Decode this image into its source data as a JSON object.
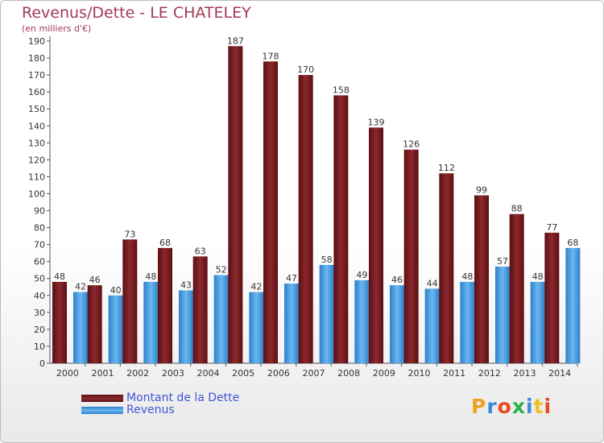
{
  "title": "Revenus/Dette - LE CHATELEY",
  "subtitle": "(en milliers d'€)",
  "chart_data": {
    "type": "bar",
    "categories": [
      "2000",
      "2001",
      "2002",
      "2003",
      "2004",
      "2005",
      "2006",
      "2007",
      "2008",
      "2009",
      "2010",
      "2011",
      "2012",
      "2013",
      "2014"
    ],
    "series": [
      {
        "name": "Montant de la Dette",
        "color": "#7a1a1f",
        "values": [
          48,
          46,
          73,
          68,
          63,
          187,
          178,
          170,
          158,
          139,
          126,
          112,
          99,
          88,
          77
        ]
      },
      {
        "name": "Revenus",
        "color": "#4aa3e8",
        "values": [
          42,
          40,
          48,
          43,
          52,
          42,
          47,
          58,
          49,
          46,
          44,
          48,
          57,
          48,
          68
        ]
      }
    ],
    "ylim": [
      0,
      190
    ],
    "ytick_step": 10,
    "grid": false,
    "legend_position": "bottom-left"
  },
  "logo": {
    "text": "Proxiti",
    "colors": [
      "#f0a020",
      "#3a8ad8",
      "#e84a20",
      "#28b04a",
      "#3a8ad8",
      "#f0c020",
      "#e84a20"
    ]
  }
}
